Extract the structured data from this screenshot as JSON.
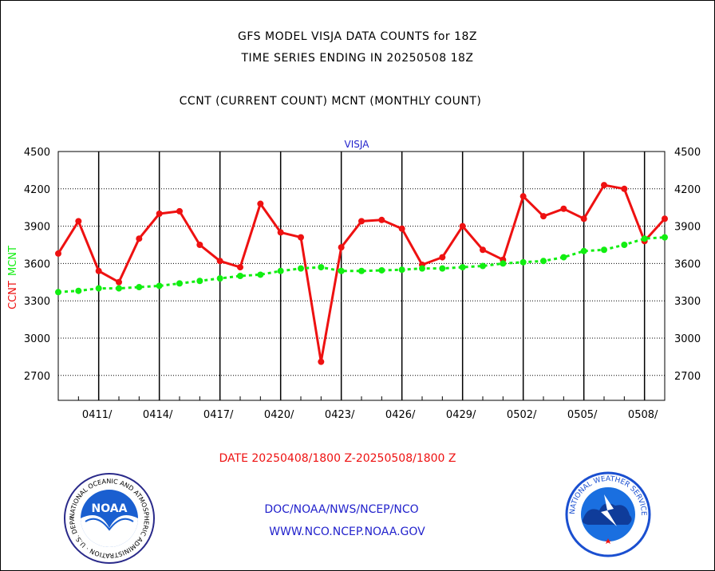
{
  "chart_data": {
    "type": "line",
    "title_lines": [
      "GFS MODEL VISJA DATA COUNTS for 18Z",
      "TIME SERIES ENDING IN 20250508 18Z"
    ],
    "subtitle": "CCNT (CURRENT COUNT) MCNT (MONTHLY COUNT)",
    "panel_label": "VISJA",
    "ylabel_left_1": "CCNT",
    "ylabel_left_2": "MCNT",
    "xlabel": "DATE 20250408/1800 Z-20250508/1800 Z",
    "ylim": [
      2500,
      4500
    ],
    "xlim": [
      0,
      30
    ],
    "yticks": [
      2700,
      3000,
      3300,
      3600,
      3900,
      4200,
      4500
    ],
    "xticks": [
      {
        "x": 2,
        "label": "0411/"
      },
      {
        "x": 5,
        "label": "0414/"
      },
      {
        "x": 8,
        "label": "0417/"
      },
      {
        "x": 11,
        "label": "0420/"
      },
      {
        "x": 14,
        "label": "0423/"
      },
      {
        "x": 17,
        "label": "0426/"
      },
      {
        "x": 20,
        "label": "0429/"
      },
      {
        "x": 23,
        "label": "0502/"
      },
      {
        "x": 26,
        "label": "0505/"
      },
      {
        "x": 29,
        "label": "0508/"
      }
    ],
    "grid": true,
    "series": [
      {
        "name": "CCNT",
        "color": "#ee1111",
        "x": [
          0,
          1,
          2,
          3,
          4,
          5,
          6,
          7,
          8,
          9,
          10,
          11,
          12,
          13,
          14,
          15,
          16,
          17,
          18,
          19,
          20,
          21,
          22,
          23,
          24,
          25,
          26,
          27,
          28,
          29,
          30
        ],
        "values": [
          3680,
          3940,
          3540,
          3450,
          3800,
          4000,
          4020,
          3750,
          3620,
          3570,
          4080,
          3850,
          3810,
          2810,
          3730,
          3940,
          3950,
          3880,
          3590,
          3650,
          3900,
          3710,
          3630,
          4140,
          3980,
          4040,
          3960,
          4230,
          4200,
          3780,
          3960
        ]
      },
      {
        "name": "MCNT",
        "color": "#11ee11",
        "x": [
          0,
          1,
          2,
          3,
          4,
          5,
          6,
          7,
          8,
          9,
          10,
          11,
          12,
          13,
          14,
          15,
          16,
          17,
          18,
          19,
          20,
          21,
          22,
          23,
          24,
          25,
          26,
          27,
          28,
          29,
          30
        ],
        "values": [
          3370,
          3380,
          3400,
          3400,
          3410,
          3420,
          3440,
          3460,
          3480,
          3500,
          3510,
          3540,
          3560,
          3570,
          3540,
          3540,
          3545,
          3550,
          3560,
          3560,
          3570,
          3580,
          3600,
          3610,
          3620,
          3650,
          3700,
          3710,
          3750,
          3800,
          3810
        ]
      }
    ]
  },
  "footer": {
    "line1": "DOC/NOAA/NWS/NCEP/NCO",
    "line2": "WWW.NCO.NCEP.NOAA.GOV"
  },
  "logos": {
    "noaa": {
      "center_text": "NOAA",
      "ring_text": "NATIONAL OCEANIC AND ATMOSPHERIC ADMINISTRATION · U.S. DEPARTMENT OF COMMERCE ·"
    },
    "nws": {
      "ring_text": "NATIONAL WEATHER SERVICE"
    }
  }
}
